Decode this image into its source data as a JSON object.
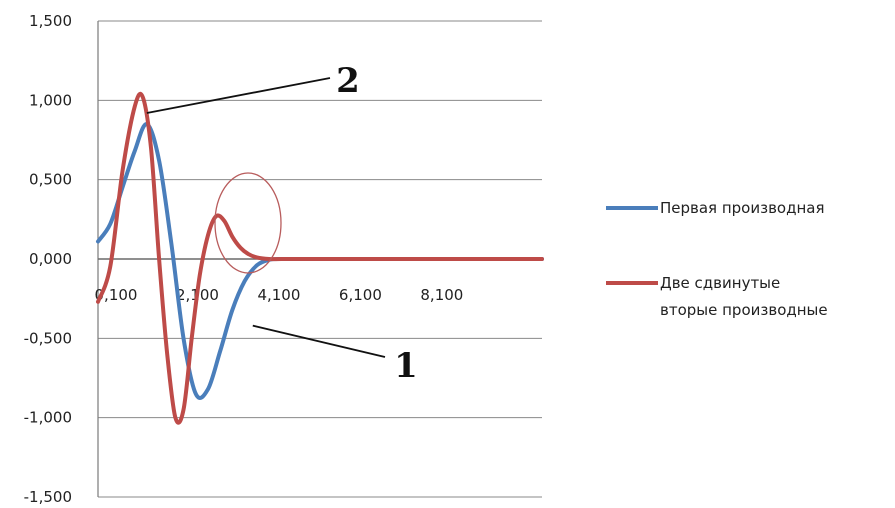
{
  "chart_data": {
    "type": "line",
    "title": "",
    "xlabel": "",
    "ylabel": "",
    "ylim": [
      -1.5,
      1.5
    ],
    "xlim": [
      0.1,
      11.0
    ],
    "grid": true,
    "legend_position": "right",
    "y_ticks": [
      1.5,
      1.0,
      0.5,
      0.0,
      -0.5,
      -1.0,
      -1.5
    ],
    "y_tick_labels": [
      "1,500",
      "1,000",
      "0,500",
      "0,000",
      "-0,500",
      "-1,000",
      "-1,500"
    ],
    "x_ticks": [
      0.1,
      2.1,
      4.1,
      6.1,
      8.1
    ],
    "x_tick_labels": [
      "0,100",
      "2,100",
      "4,100",
      "6,100",
      "8,100"
    ],
    "series": [
      {
        "name": "Первая производная",
        "color": "#4a7ebb",
        "x": [
          0.1,
          0.4,
          0.7,
          1.0,
          1.3,
          1.6,
          1.9,
          2.2,
          2.5,
          2.8,
          3.1,
          3.4,
          3.7,
          4.0,
          4.3,
          4.6,
          5.0,
          6.0,
          8.0,
          11.0
        ],
        "y": [
          0.11,
          0.22,
          0.45,
          0.68,
          0.85,
          0.62,
          0.1,
          -0.5,
          -0.85,
          -0.82,
          -0.58,
          -0.32,
          -0.14,
          -0.04,
          -0.005,
          0.0,
          0.0,
          0.0,
          0.0,
          0.0
        ]
      },
      {
        "name": "Две сдвинутые вторые производные",
        "color": "#be4b48",
        "x": [
          0.1,
          0.4,
          0.7,
          1.0,
          1.2,
          1.4,
          1.6,
          1.8,
          2.0,
          2.2,
          2.4,
          2.6,
          2.8,
          3.0,
          3.2,
          3.4,
          3.6,
          3.8,
          4.0,
          4.3,
          4.6,
          5.0,
          6.0,
          8.0,
          11.0
        ],
        "y": [
          -0.27,
          -0.05,
          0.55,
          0.96,
          1.02,
          0.7,
          0.0,
          -0.6,
          -1.0,
          -0.95,
          -0.5,
          -0.1,
          0.15,
          0.27,
          0.24,
          0.14,
          0.07,
          0.03,
          0.01,
          0.0,
          0.0,
          0.0,
          0.0,
          0.0,
          0.0
        ]
      }
    ],
    "annotations": [
      {
        "text": "2",
        "target_series": "Две сдвинутые вторые производные",
        "point_x": 1.3,
        "point_y": 0.92
      },
      {
        "text": "1",
        "target_series": "Первая производная",
        "point_x": 3.9,
        "point_y": -0.42
      }
    ]
  }
}
